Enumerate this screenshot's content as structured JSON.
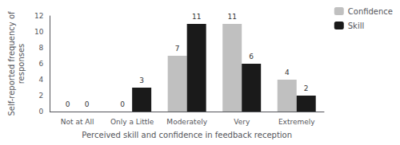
{
  "chart_data": {
    "type": "bar",
    "categories": [
      "Not at All",
      "Only a Little",
      "Moderately",
      "Very",
      "Extremely"
    ],
    "series": [
      {
        "name": "Confidence",
        "color": "#C0C0C0",
        "values": [
          0,
          0,
          7,
          11,
          4
        ]
      },
      {
        "name": "Skill",
        "color": "#1A1A1A",
        "values": [
          0,
          3,
          11,
          6,
          2
        ]
      }
    ],
    "xlabel": "Perceived skill and confidence in feedback reception",
    "ylabel": "Self-reported frequency of\nresponses",
    "ylim": [
      0,
      12
    ],
    "yticks": [
      0,
      2,
      4,
      6,
      8,
      10,
      12
    ],
    "data_labels": true,
    "legend": "upper right",
    "grid": false
  }
}
